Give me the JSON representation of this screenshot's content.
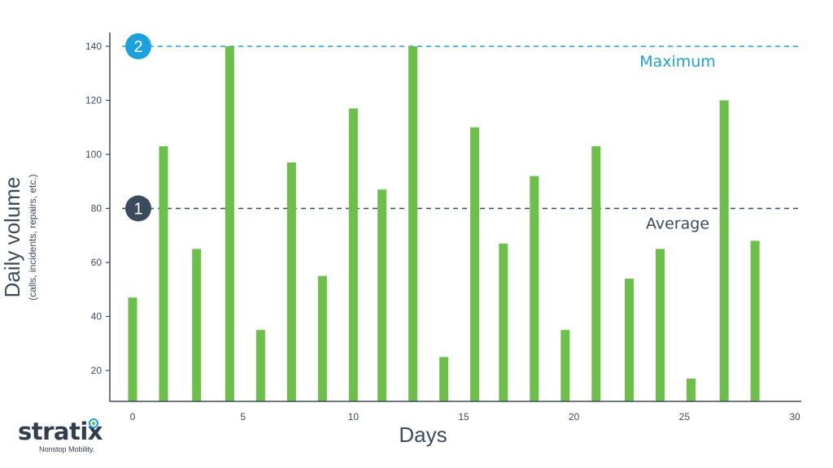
{
  "chart_data": {
    "type": "bar",
    "x": [
      0,
      1.4,
      2.9,
      4.4,
      5.8,
      7.2,
      8.6,
      10,
      11.3,
      12.7,
      14.1,
      15.5,
      16.8,
      18.2,
      19.6,
      21,
      22.5,
      23.9,
      25.3,
      26.8,
      28.2
    ],
    "values": [
      47,
      103,
      65,
      140,
      35,
      97,
      55,
      117,
      87,
      140,
      25,
      110,
      67,
      92,
      35,
      103,
      54,
      65,
      17,
      120,
      68
    ],
    "xticks": [
      0,
      5,
      10,
      15,
      20,
      25,
      30
    ],
    "yticks": [
      20,
      40,
      60,
      80,
      100,
      120,
      140
    ],
    "xlim": [
      -1,
      30
    ],
    "ylim": [
      8,
      145
    ],
    "xlabel": "Days",
    "ylabel": "Daily volume",
    "ylabel_sub": "(calls, incidents, repairs, etc.)",
    "reference_lines": [
      {
        "value": 80,
        "label": "Average",
        "marker": "1",
        "color": "#3b4b5e"
      },
      {
        "value": 140,
        "label": "Maximum",
        "marker": "2",
        "color": "#1aa1de"
      }
    ],
    "bar_color": "#6cc04a",
    "grid": false
  },
  "logo": {
    "wordmark": "stratix",
    "tagline": "Nonstop Mobility."
  }
}
